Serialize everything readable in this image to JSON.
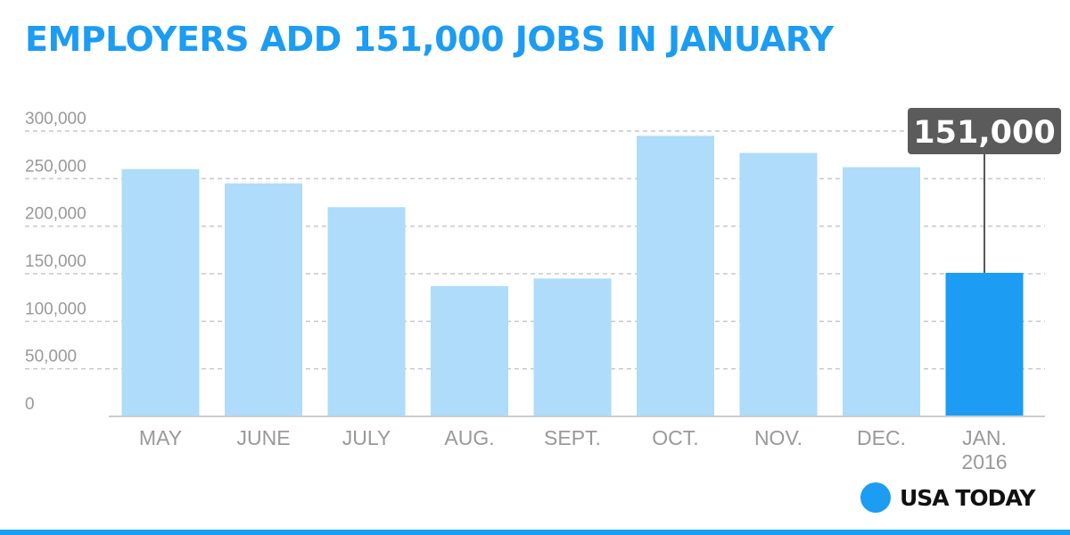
{
  "header": {
    "title": "EMPLOYERS ADD 151,000 JOBS IN JANUARY"
  },
  "brand": {
    "name": "USA TODAY",
    "color": "#1c9cf2"
  },
  "chart_data": {
    "type": "bar",
    "title": "EMPLOYERS ADD 151,000 JOBS IN JANUARY",
    "categories": [
      "MAY",
      "JUNE",
      "JULY",
      "AUG.",
      "SEPT.",
      "OCT.",
      "NOV.",
      "DEC.",
      "JAN. 2016"
    ],
    "values": [
      260000,
      245000,
      220000,
      137000,
      145000,
      295000,
      277000,
      262000,
      151000
    ],
    "highlight_index": 8,
    "callout": "151,000",
    "ylim": [
      0,
      300000
    ],
    "yticks": [
      0,
      50000,
      100000,
      150000,
      200000,
      250000,
      300000
    ],
    "ytick_labels": [
      "0",
      "50,000",
      "100,000",
      "150,000",
      "200,000",
      "250,000",
      "300,000"
    ],
    "xlabel": "",
    "ylabel": "",
    "grid": true,
    "colors": {
      "bar": "#aedcfa",
      "highlight": "#1c9cf2",
      "grid": "#c8c8c8",
      "axis_text": "#999999",
      "callout_bg": "#5b5b5b",
      "callout_text": "#ffffff"
    }
  }
}
